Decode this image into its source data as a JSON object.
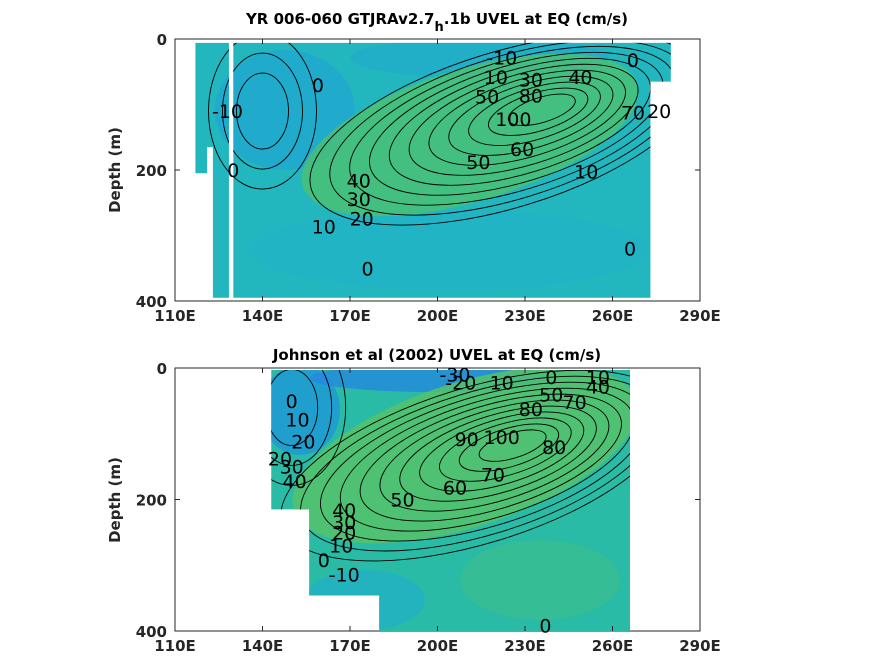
{
  "chart_data": [
    {
      "type": "contour",
      "title": "YR 006-060 GTJRAv2.7_h.1b UVEL at EQ (cm/s)",
      "title_parts": [
        "YR 006-060 GTJRAv2.7",
        "h",
        ".1b UVEL at EQ (cm/s)"
      ],
      "xlabel": "",
      "ylabel": "Depth (m)",
      "x_ticks": [
        "110E",
        "140E",
        "170E",
        "200E",
        "230E",
        "260E",
        "290E"
      ],
      "y_ticks": [
        "0",
        "200",
        "400"
      ],
      "xlim": [
        110,
        290
      ],
      "ylim": [
        0,
        400
      ],
      "y_reversed": true,
      "colormap": "parula",
      "core": {
        "lon": 237,
        "depth": 105,
        "max_speed": 110
      },
      "contour_labels": [
        {
          "text": "-10",
          "lon": 222,
          "depth": 28
        },
        {
          "text": "0",
          "lon": 267,
          "depth": 32
        },
        {
          "text": "10",
          "lon": 220,
          "depth": 58
        },
        {
          "text": "30",
          "lon": 232,
          "depth": 62
        },
        {
          "text": "40",
          "lon": 249,
          "depth": 58
        },
        {
          "text": "50",
          "lon": 217,
          "depth": 88
        },
        {
          "text": "80",
          "lon": 232,
          "depth": 86
        },
        {
          "text": "100",
          "lon": 226,
          "depth": 122
        },
        {
          "text": "70",
          "lon": 267,
          "depth": 112
        },
        {
          "text": "20",
          "lon": 276,
          "depth": 110
        },
        {
          "text": "-10",
          "lon": 128,
          "depth": 110
        },
        {
          "text": "0",
          "lon": 159,
          "depth": 70
        },
        {
          "text": "0",
          "lon": 130,
          "depth": 200
        },
        {
          "text": "50",
          "lon": 214,
          "depth": 188
        },
        {
          "text": "60",
          "lon": 229,
          "depth": 168
        },
        {
          "text": "10",
          "lon": 251,
          "depth": 202
        },
        {
          "text": "40",
          "lon": 173,
          "depth": 216
        },
        {
          "text": "30",
          "lon": 173,
          "depth": 244
        },
        {
          "text": "20",
          "lon": 174,
          "depth": 274
        },
        {
          "text": "10",
          "lon": 161,
          "depth": 286
        },
        {
          "text": "0",
          "lon": 176,
          "depth": 350
        },
        {
          "text": "0",
          "lon": 266,
          "depth": 320
        }
      ]
    },
    {
      "type": "contour",
      "title": "Johnson et al (2002) UVEL at EQ (cm/s)",
      "xlabel": "",
      "ylabel": "Depth (m)",
      "x_ticks": [
        "110E",
        "140E",
        "170E",
        "200E",
        "230E",
        "260E",
        "290E"
      ],
      "y_ticks": [
        "0",
        "200",
        "400"
      ],
      "xlim": [
        110,
        290
      ],
      "ylim": [
        0,
        400
      ],
      "y_reversed": true,
      "colormap": "parula",
      "core": {
        "lon": 227,
        "depth": 115,
        "max_speed": 100
      },
      "contour_labels": [
        {
          "text": "-30",
          "lon": 206,
          "depth": 10
        },
        {
          "text": "-20",
          "lon": 208,
          "depth": 22
        },
        {
          "text": "10",
          "lon": 222,
          "depth": 22
        },
        {
          "text": "0",
          "lon": 239,
          "depth": 14
        },
        {
          "text": "10",
          "lon": 255,
          "depth": 14
        },
        {
          "text": "50",
          "lon": 239,
          "depth": 40
        },
        {
          "text": "40",
          "lon": 255,
          "depth": 28
        },
        {
          "text": "80",
          "lon": 232,
          "depth": 62
        },
        {
          "text": "70",
          "lon": 247,
          "depth": 52
        },
        {
          "text": "0",
          "lon": 150,
          "depth": 50
        },
        {
          "text": "10",
          "lon": 152,
          "depth": 78
        },
        {
          "text": "20",
          "lon": 154,
          "depth": 112
        },
        {
          "text": "20",
          "lon": 146,
          "depth": 138
        },
        {
          "text": "30",
          "lon": 150,
          "depth": 150
        },
        {
          "text": "40",
          "lon": 151,
          "depth": 172
        },
        {
          "text": "90",
          "lon": 210,
          "depth": 108
        },
        {
          "text": "100",
          "lon": 222,
          "depth": 105
        },
        {
          "text": "80",
          "lon": 240,
          "depth": 120
        },
        {
          "text": "70",
          "lon": 219,
          "depth": 162
        },
        {
          "text": "60",
          "lon": 206,
          "depth": 182
        },
        {
          "text": "50",
          "lon": 188,
          "depth": 200
        },
        {
          "text": "40",
          "lon": 168,
          "depth": 216
        },
        {
          "text": "30",
          "lon": 168,
          "depth": 234
        },
        {
          "text": "20",
          "lon": 168,
          "depth": 250
        },
        {
          "text": "10",
          "lon": 167,
          "depth": 270
        },
        {
          "text": "0",
          "lon": 161,
          "depth": 292
        },
        {
          "text": "-10",
          "lon": 168,
          "depth": 314
        },
        {
          "text": "0",
          "lon": 237,
          "depth": 392
        }
      ]
    }
  ]
}
